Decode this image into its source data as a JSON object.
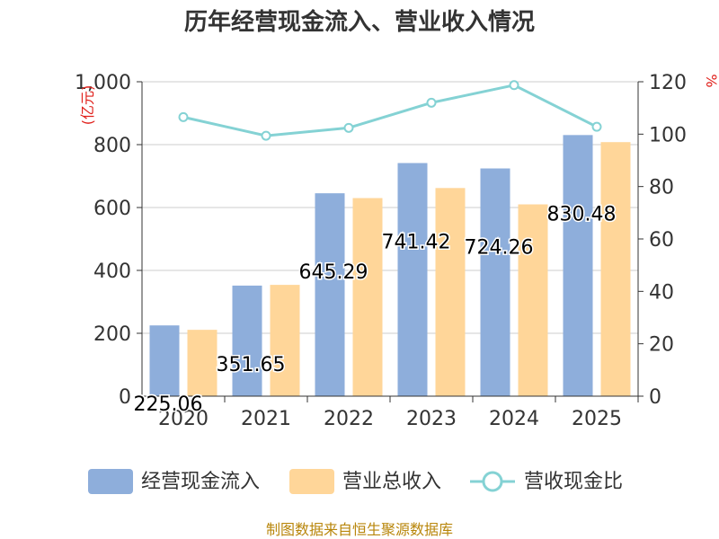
{
  "chart_data": {
    "type": "bar",
    "title": "历年经营现金流入、营业收入情况",
    "categories": [
      "2020",
      "2021",
      "2022",
      "2023",
      "2024",
      "2025"
    ],
    "series": [
      {
        "name": "经营现金流入",
        "type": "bar",
        "axis": "left",
        "color": "#8eaedb",
        "values": [
          225.06,
          351.65,
          645.29,
          741.42,
          724.26,
          830.48
        ]
      },
      {
        "name": "营业总收入",
        "type": "bar",
        "axis": "left",
        "color": "#ffd699",
        "values": [
          211,
          354,
          630,
          662,
          610,
          808
        ]
      },
      {
        "name": "营收现金比",
        "type": "line",
        "axis": "right",
        "color": "#84d2d4",
        "values": [
          106.5,
          99.4,
          102.4,
          112,
          118.7,
          102.8
        ]
      }
    ],
    "data_labels": [
      "225.06",
      "351.65",
      "645.29",
      "741.42",
      "724.26",
      "830.48"
    ],
    "y_left": {
      "unit": "(亿元)",
      "ylim": [
        0,
        1000
      ],
      "ticks": [
        "0",
        "200",
        "400",
        "600",
        "800",
        "1,000"
      ]
    },
    "y_right": {
      "unit": "%",
      "ylim": [
        0,
        120
      ],
      "ticks": [
        "0",
        "20",
        "40",
        "60",
        "80",
        "100",
        "120"
      ]
    },
    "grid": true,
    "legend_position": "bottom"
  },
  "source_note": "制图数据来自恒生聚源数据库"
}
